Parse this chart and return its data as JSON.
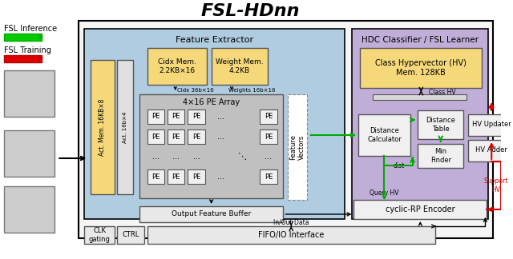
{
  "title": "FSL-HDnn",
  "bg_color": "#ffffff",
  "left_label_inference": "FSL Inference",
  "left_label_training": "FSL Training",
  "feature_extractor_label": "Feature Extractor",
  "hdc_classifier_label": "HDC Classifier / FSL Learner",
  "act_mem_label": "Act. Mem. 16KB×8",
  "act_mem2_label": "Act. 16b×4",
  "cidx_mem_label": "Cidx Mem.\n2.2KB×16",
  "weight_mem_label": "Weight Mem.\n4.2KB",
  "pe_array_label": "4×16 PE Array",
  "output_buffer_label": "Output Feature Buffer",
  "fifo_label": "FIFO/IO Interface",
  "inout_label": "In/Out Data",
  "clk_label": "CLK\ngating",
  "ctrl_label": "CTRL",
  "class_hv_label": "Class Hypervector (HV)\nMem. 128KB",
  "distance_calc_label": "Distance\nCalculator",
  "distance_table_label": "Distance\nTable",
  "min_finder_label": "Min\nFinder",
  "hv_updater_label": "HV Updater",
  "hv_adder_label": "HV Adder",
  "cyclic_rp_label": "cyclic-RP Encoder",
  "feature_vectors_label": "Feature\nVectors",
  "class_hv_arrow_label": "Class HV",
  "query_hv_label": "Query HV",
  "dist_label": "dist",
  "support_hv_label": "Support\nHV",
  "cidx_label": "Cidx 36b×16",
  "weights_label": "Weights 16b×16"
}
